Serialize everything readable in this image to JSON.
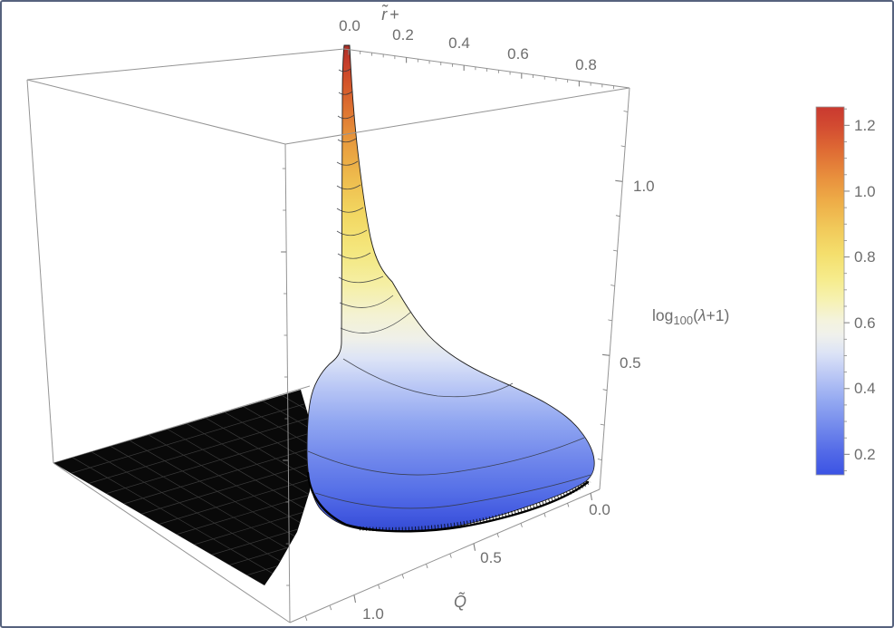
{
  "window": {
    "border_color": "#56627e",
    "background": "#ffffff"
  },
  "plot": {
    "x_axis": {
      "label_r": "r̃",
      "label_plus": "+",
      "tick_labels": [
        "0.0",
        "0.2",
        "0.4",
        "0.6",
        "0.8"
      ]
    },
    "y_axis": {
      "label": "Q̃",
      "tick_labels": [
        "1.0",
        "0.5",
        "0.0"
      ]
    },
    "z_axis": {
      "label_parts": [
        "log",
        "100",
        "(",
        "λ",
        "+1)"
      ],
      "tick_labels": [
        "1.0",
        "0.5"
      ]
    },
    "colorbar": {
      "tick_labels": [
        "1.2",
        "1.0",
        "0.8",
        "0.6",
        "0.4",
        "0.2"
      ]
    }
  },
  "style": {
    "box_line_color": "#949494",
    "tick_color": "#808080",
    "label_color": "#6e6e6e",
    "excluded_fill": "#090909",
    "excluded_grid": "#3a3a3a",
    "contour_color": "#33363d",
    "surface_edge": "#1c1c1c",
    "surface_stops": [
      [
        "0%",
        "#a93028"
      ],
      [
        "3%",
        "#c33b2b"
      ],
      [
        "8%",
        "#d4562a"
      ],
      [
        "14%",
        "#df7832"
      ],
      [
        "20%",
        "#e89c3e"
      ],
      [
        "27%",
        "#eebb4d"
      ],
      [
        "34%",
        "#f2d660"
      ],
      [
        "42%",
        "#f4e77e"
      ],
      [
        "49%",
        "#f5efa5"
      ],
      [
        "55%",
        "#f4f2d2"
      ],
      [
        "60%",
        "#eff0e9"
      ],
      [
        "64%",
        "#dde4f6"
      ],
      [
        "70%",
        "#b8c6f5"
      ],
      [
        "77%",
        "#90a6f1"
      ],
      [
        "84%",
        "#7289ec"
      ],
      [
        "91%",
        "#5670e7"
      ],
      [
        "96%",
        "#4259e0"
      ],
      [
        "100%",
        "#3048cf"
      ]
    ],
    "colorbar_stops": [
      [
        "0%",
        "#c9392f"
      ],
      [
        "5%",
        "#d24a31"
      ],
      [
        "12%",
        "#df6c34"
      ],
      [
        "19%",
        "#e88f3d"
      ],
      [
        "26%",
        "#eeae48"
      ],
      [
        "33%",
        "#f1c95a"
      ],
      [
        "40%",
        "#f4df6d"
      ],
      [
        "47%",
        "#f6ec8d"
      ],
      [
        "53%",
        "#f6f2b5"
      ],
      [
        "58%",
        "#f4f3dd"
      ],
      [
        "62%",
        "#f0f1ec"
      ],
      [
        "67%",
        "#dce3f6"
      ],
      [
        "73%",
        "#bac7f5"
      ],
      [
        "80%",
        "#93a8f1"
      ],
      [
        "87%",
        "#7289ec"
      ],
      [
        "94%",
        "#5269e7"
      ],
      [
        "100%",
        "#3b53e4"
      ]
    ]
  },
  "chart_data": {
    "type": "3d-surface",
    "title": "",
    "x_axis": {
      "label": "r̃+",
      "range": [
        0,
        0.88
      ],
      "ticks": [
        0.0,
        0.2,
        0.4,
        0.6,
        0.8
      ],
      "minor_tick_step": 0.04
    },
    "y_axis": {
      "label": "Q̃",
      "range": [
        0,
        1.23
      ],
      "ticks": [
        1.0,
        0.5,
        0.0
      ],
      "minor_tick_step": 0.1
    },
    "z_axis": {
      "label": "log100(λ+1)",
      "range": [
        0.11,
        1.27
      ],
      "ticks": [
        1.0,
        0.5
      ],
      "minor_tick_step": 0.1
    },
    "colorbar": {
      "range": [
        0.13,
        1.25
      ],
      "ticks": [
        1.2,
        1.0,
        0.8,
        0.6,
        0.4,
        0.2
      ],
      "colormap": "temperature: blue -> pale blue -> white -> yellow -> orange -> red"
    },
    "surface": {
      "description": "log100(λ+1) plotted over (r̃+, Q̃). A sharp narrow spike rises to ~1.25 as r̃+ -> 0, then the surface decays smoothly into a rounded blue dome that spreads toward larger r̃+ and smaller Q̃, bottoming out near ~0.13 with a dark jagged rim. A flat black 'excluded' meshed region lies on the floor at small r̃+ / large Q̃ where the surface is not defined.",
      "peak": {
        "r_plus": 0.0,
        "value": 1.25
      },
      "min_value": 0.13,
      "contour_levels": [
        0.2,
        0.3,
        0.4,
        0.5,
        0.6,
        0.7,
        0.8,
        0.9,
        1.0,
        1.1,
        1.2
      ],
      "grid_lines": false,
      "legend_position": "right colorbar"
    }
  }
}
